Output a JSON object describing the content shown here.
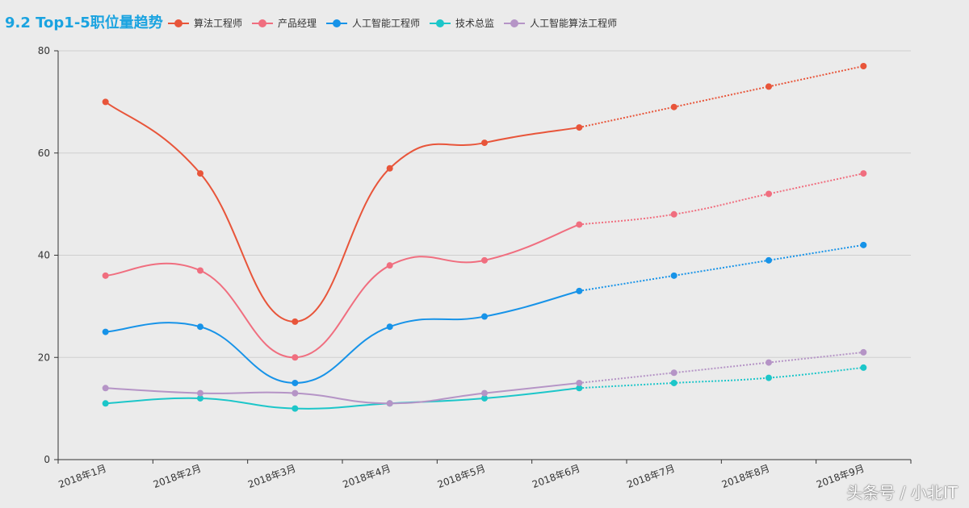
{
  "chart_data": {
    "type": "line",
    "title": "9.2 Top1-5职位量趋势",
    "xlabel": "",
    "ylabel": "",
    "ylim": [
      0,
      80
    ],
    "yticks": [
      0,
      20,
      40,
      60,
      80
    ],
    "categories": [
      "2018年1月",
      "2018年2月",
      "2018年3月",
      "2018年4月",
      "2018年5月",
      "2018年6月",
      "2018年7月",
      "2018年8月",
      "2018年9月"
    ],
    "actual_until_index": 5,
    "series": [
      {
        "name": "算法工程师",
        "color": "#e8553a",
        "values": [
          70,
          56,
          27,
          57,
          62,
          65,
          69,
          73,
          77
        ]
      },
      {
        "name": "产品经理",
        "color": "#f06e7f",
        "values": [
          36,
          37,
          20,
          38,
          39,
          46,
          48,
          52,
          56
        ]
      },
      {
        "name": "人工智能工程师",
        "color": "#1793e8",
        "values": [
          25,
          26,
          15,
          26,
          28,
          33,
          36,
          39,
          42
        ]
      },
      {
        "name": "技术总监",
        "color": "#1cc6c9",
        "values": [
          11,
          12,
          10,
          11,
          12,
          14,
          15,
          16,
          18
        ]
      },
      {
        "name": "人工智能算法工程师",
        "color": "#b594c6",
        "values": [
          14,
          13,
          13,
          11,
          13,
          15,
          17,
          19,
          21
        ]
      }
    ],
    "legend_position": "top"
  },
  "watermark": "头条号 / 小北IT"
}
